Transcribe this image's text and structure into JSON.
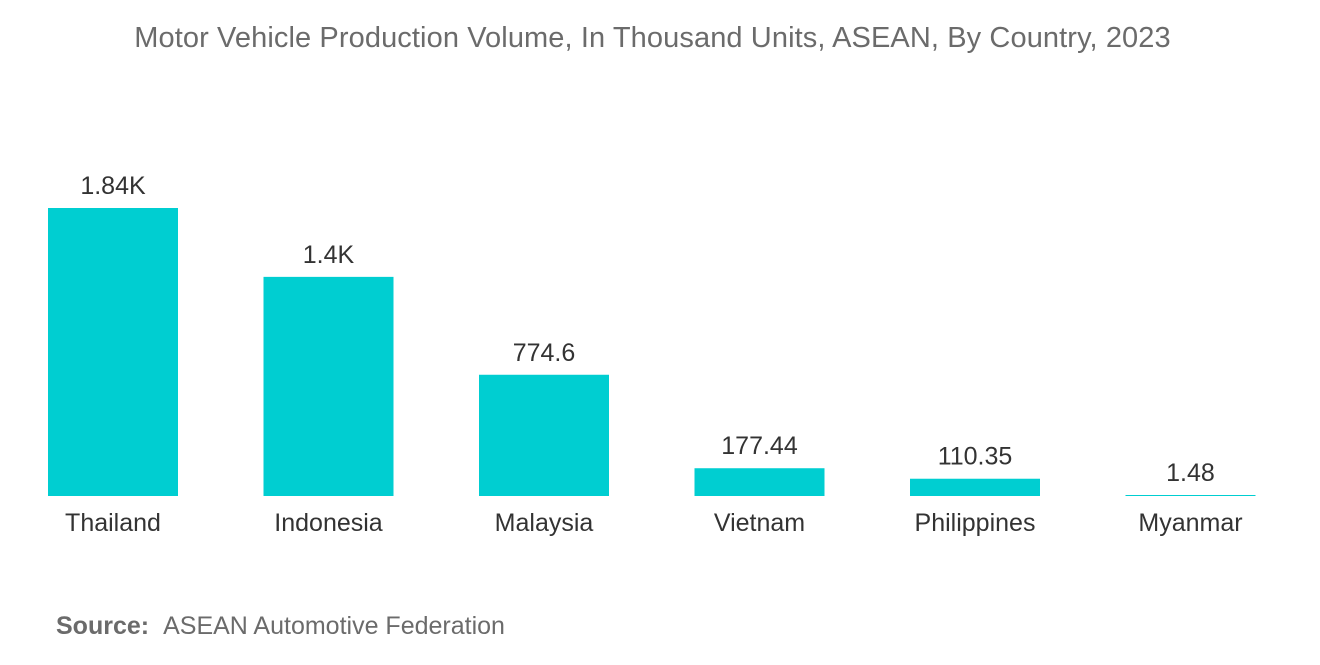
{
  "chart_data": {
    "type": "bar",
    "title": "Motor Vehicle Production Volume, In Thousand Units, ASEAN, By Country, 2023",
    "categories": [
      "Thailand",
      "Indonesia",
      "Malaysia",
      "Vietnam",
      "Philippines",
      "Myanmar"
    ],
    "values": [
      1840,
      1400,
      774.6,
      177.44,
      110.35,
      1.48
    ],
    "data_labels": [
      "1.84K",
      "1.4K",
      "774.6",
      "177.44",
      "110.35",
      "1.48"
    ],
    "xlabel": "",
    "ylabel": "",
    "ylim": [
      0,
      1840
    ],
    "grid": false,
    "legend": "none",
    "bar_color": "#00CED1"
  },
  "source": {
    "label": "Source:",
    "text": "ASEAN Automotive Federation"
  }
}
